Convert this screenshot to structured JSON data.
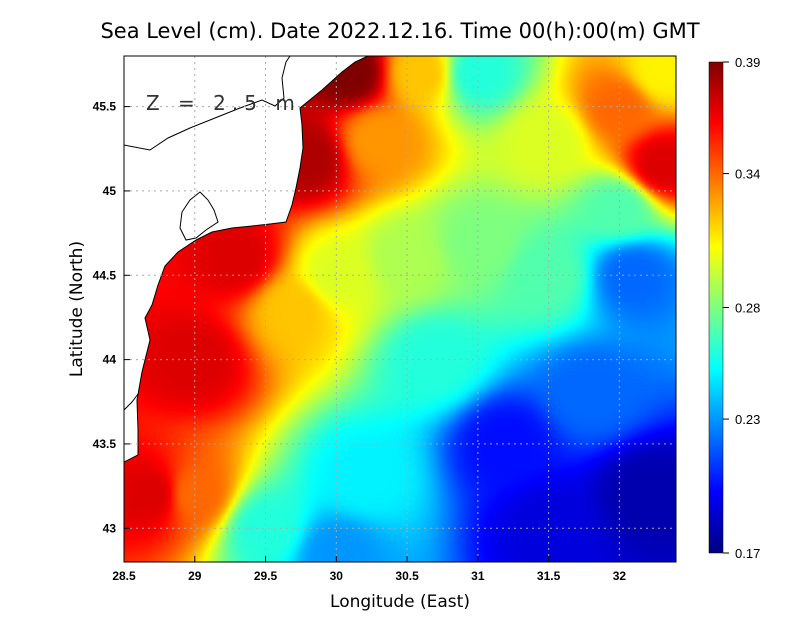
{
  "chart_data": {
    "type": "heatmap",
    "title": "Sea Level (cm). Date 2022.12.16. Time 00(h):00(m) GMT",
    "xlabel": "Longitude (East)",
    "ylabel": "Latitude (North)",
    "annotation": "Z = 2.5 m",
    "xlim": [
      28.5,
      32.4
    ],
    "ylim": [
      42.8,
      45.8
    ],
    "x_ticks": [
      "28.5",
      "29",
      "29.5",
      "30",
      "30.5",
      "31",
      "31.5",
      "32"
    ],
    "y_ticks": [
      "43",
      "43.5",
      "44",
      "44.5",
      "45",
      "45.5"
    ],
    "grid": true,
    "colorbar": {
      "position": "right",
      "min": 0.17,
      "max": 0.39,
      "tick_labels": [
        "0.39",
        "0.34",
        "0.28",
        "0.23",
        "0.17"
      ],
      "tick_values": [
        0.39,
        0.34,
        0.28,
        0.23,
        0.17
      ],
      "colors": [
        "#00007f",
        "#0000ff",
        "#007fff",
        "#00ffff",
        "#7fff7f",
        "#ffff00",
        "#ff7f00",
        "#ff0000",
        "#7f0000"
      ]
    },
    "field_samples": [
      {
        "lon": 28.7,
        "lat": 43.2,
        "value": 0.37
      },
      {
        "lon": 29.0,
        "lat": 44.0,
        "value": 0.37
      },
      {
        "lon": 29.3,
        "lat": 44.6,
        "value": 0.37
      },
      {
        "lon": 29.8,
        "lat": 45.2,
        "value": 0.38
      },
      {
        "lon": 30.1,
        "lat": 45.7,
        "value": 0.39
      },
      {
        "lon": 29.0,
        "lat": 43.2,
        "value": 0.34
      },
      {
        "lon": 29.7,
        "lat": 44.3,
        "value": 0.32
      },
      {
        "lon": 30.3,
        "lat": 45.3,
        "value": 0.33
      },
      {
        "lon": 30.6,
        "lat": 45.7,
        "value": 0.32
      },
      {
        "lon": 30.0,
        "lat": 44.5,
        "value": 0.3
      },
      {
        "lon": 29.5,
        "lat": 43.0,
        "value": 0.26
      },
      {
        "lon": 30.2,
        "lat": 43.3,
        "value": 0.25
      },
      {
        "lon": 30.5,
        "lat": 44.6,
        "value": 0.29
      },
      {
        "lon": 31.0,
        "lat": 44.7,
        "value": 0.28
      },
      {
        "lon": 31.0,
        "lat": 45.7,
        "value": 0.26
      },
      {
        "lon": 30.7,
        "lat": 44.0,
        "value": 0.26
      },
      {
        "lon": 31.2,
        "lat": 43.5,
        "value": 0.2
      },
      {
        "lon": 31.5,
        "lat": 43.0,
        "value": 0.19
      },
      {
        "lon": 32.2,
        "lat": 43.2,
        "value": 0.18
      },
      {
        "lon": 31.8,
        "lat": 43.8,
        "value": 0.22
      },
      {
        "lon": 32.1,
        "lat": 44.5,
        "value": 0.22
      },
      {
        "lon": 31.5,
        "lat": 44.5,
        "value": 0.27
      },
      {
        "lon": 31.5,
        "lat": 45.3,
        "value": 0.3
      },
      {
        "lon": 32.0,
        "lat": 45.5,
        "value": 0.34
      },
      {
        "lon": 32.3,
        "lat": 45.15,
        "value": 0.37
      },
      {
        "lon": 32.3,
        "lat": 45.7,
        "value": 0.31
      },
      {
        "lon": 32.0,
        "lat": 44.9,
        "value": 0.27
      },
      {
        "lon": 30.0,
        "lat": 42.85,
        "value": 0.23
      }
    ]
  }
}
